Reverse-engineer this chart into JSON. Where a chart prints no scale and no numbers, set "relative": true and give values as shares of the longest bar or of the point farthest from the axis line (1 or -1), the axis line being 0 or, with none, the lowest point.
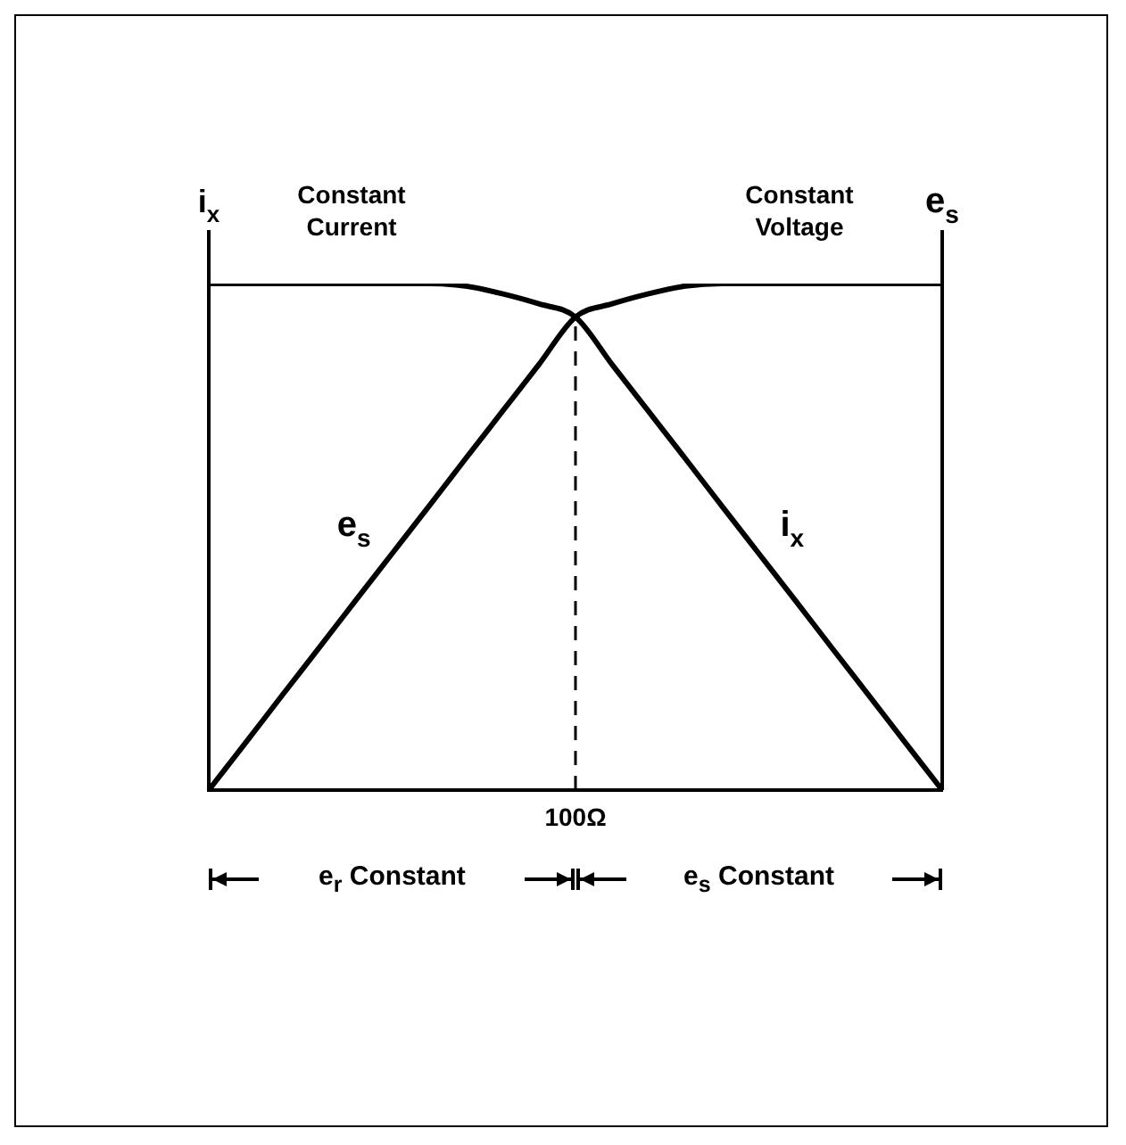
{
  "chart_data": {
    "type": "line",
    "relative": true,
    "ylabel": "i$_{x}$",
    "y2label": "e$_{s}$",
    "categories": [
      null,
      null,
      null,
      null,
      null,
      null,
      null,
      null,
      null,
      null,
      null,
      null,
      null,
      null,
      null,
      null,
      null,
      null,
      null,
      null,
      null
    ],
    "grid": false,
    "marker": "none",
    "line_style": "solid",
    "series": [
      {
        "name": "e$_{s}$",
        "color": "#000000",
        "values": [
          0,
          0.093,
          0.187,
          0.28,
          0.374,
          0.467,
          0.56,
          0.654,
          0.747,
          0.84,
          0.934,
          0.96,
          0.98,
          0.995,
          1,
          1,
          1,
          1,
          1,
          1,
          1
        ]
      },
      {
        "name": "i$_{x}$",
        "color": "#000000",
        "values": [
          1,
          1,
          1,
          1,
          1,
          1,
          1,
          0.995,
          0.98,
          0.96,
          0.934,
          0.84,
          0.747,
          0.654,
          0.56,
          0.467,
          0.374,
          0.28,
          0.187,
          0.093,
          0
        ]
      }
    ],
    "annotations": [
      "Constant Current",
      "Constant Voltage",
      "100Ω",
      "e$_{r}$ Constant",
      "e$_{s}$ Constant"
    ]
  }
}
